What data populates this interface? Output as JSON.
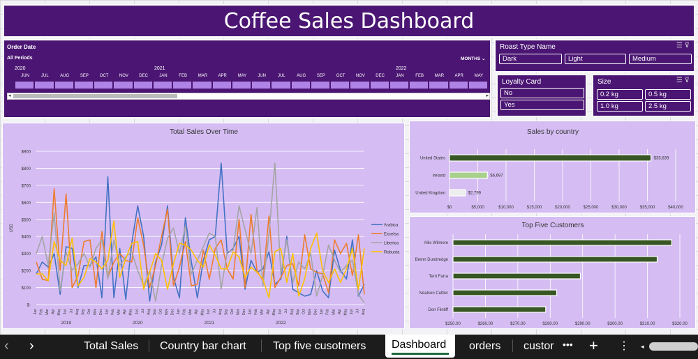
{
  "dashboard_title": "Coffee Sales Dashboard",
  "timeline": {
    "field": "Order Date",
    "period": "All Periods",
    "unit": "MONTHS",
    "years": [
      "2020",
      "2021",
      "2022"
    ],
    "months": [
      "JUN",
      "JUL",
      "AUG",
      "SEP",
      "OCT",
      "NOV",
      "DEC",
      "JAN",
      "FEB",
      "MAR",
      "APR",
      "MAY",
      "JUN",
      "JUL",
      "AUG",
      "SEP",
      "OCT",
      "NOV",
      "DEC",
      "JAN",
      "FEB",
      "MAR",
      "APR",
      "MAY"
    ]
  },
  "slicers": {
    "roast": {
      "title": "Roast Type Name",
      "items": [
        "Dark",
        "Light",
        "Medium"
      ]
    },
    "loyalty": {
      "title": "Loyalty Card",
      "items": [
        "No",
        "Yes"
      ]
    },
    "size": {
      "title": "Size",
      "items": [
        "0.2 kg",
        "0.5 kg",
        "1.0 kg",
        "2.5 kg"
      ]
    }
  },
  "icons": [
    "multi-select-icon",
    "clear-filter-icon",
    "scroll-left-icon",
    "scroll-right-icon",
    "more-icon",
    "add-sheet-icon",
    "vertical-menu-icon"
  ],
  "chart_data": [
    {
      "type": "line",
      "title": "Total Sales Over Time",
      "ylabel": "USD",
      "ylim": [
        0,
        900
      ],
      "yticks": [
        "$-",
        "$100",
        "$200",
        "$300",
        "$400",
        "$500",
        "$600",
        "$700",
        "$800",
        "$900"
      ],
      "x_months": [
        "Jan",
        "Feb",
        "Mar",
        "Apr",
        "May",
        "Jun",
        "Jul",
        "Aug",
        "Sep",
        "Oct",
        "Nov",
        "Dec",
        "Jan",
        "Feb",
        "Mar",
        "Apr",
        "May",
        "Jun",
        "Jul",
        "Aug",
        "Sep",
        "Oct",
        "Nov",
        "Dec",
        "Jan",
        "Feb",
        "Mar",
        "Apr",
        "May",
        "Jun",
        "Jul",
        "Aug",
        "Sep",
        "Oct",
        "Nov",
        "Dec",
        "Jan",
        "Feb",
        "Mar",
        "Apr",
        "May",
        "Jun",
        "Jul",
        "Aug",
        "Sep",
        "Oct",
        "Nov",
        "Dec",
        "Jan",
        "Feb",
        "Mar",
        "Apr",
        "May",
        "Jun",
        "Jul",
        "Aug"
      ],
      "x_years": [
        {
          "label": "2019",
          "index": 5
        },
        {
          "label": "2020",
          "index": 17
        },
        {
          "label": "2021",
          "index": 29
        },
        {
          "label": "2022",
          "index": 41
        }
      ],
      "series": [
        {
          "name": "Arabica",
          "color": "#4472c4",
          "values": [
            180,
            250,
            220,
            300,
            60,
            340,
            330,
            100,
            230,
            230,
            280,
            40,
            750,
            40,
            330,
            30,
            360,
            580,
            400,
            20,
            250,
            350,
            580,
            160,
            40,
            510,
            250,
            40,
            260,
            380,
            400,
            830,
            300,
            330,
            400,
            90,
            260,
            190,
            210,
            310,
            120,
            150,
            400,
            90,
            70,
            50,
            60,
            200,
            80,
            40,
            320,
            200,
            150,
            380,
            50,
            120
          ]
        },
        {
          "name": "Excelsa",
          "color": "#ed7d31",
          "values": [
            250,
            150,
            140,
            680,
            200,
            650,
            100,
            170,
            370,
            380,
            100,
            430,
            160,
            250,
            300,
            260,
            250,
            510,
            350,
            100,
            230,
            400,
            560,
            110,
            220,
            370,
            110,
            120,
            320,
            150,
            330,
            380,
            210,
            150,
            500,
            100,
            530,
            200,
            140,
            520,
            100,
            160,
            230,
            240,
            110,
            410,
            210,
            190,
            180,
            70,
            380,
            300,
            360,
            170,
            410,
            60
          ]
        },
        {
          "name": "Liberica",
          "color": "#a5a5a5",
          "values": [
            300,
            400,
            230,
            540,
            80,
            310,
            200,
            240,
            300,
            220,
            330,
            380,
            150,
            380,
            230,
            280,
            310,
            200,
            110,
            200,
            20,
            230,
            390,
            450,
            300,
            460,
            180,
            260,
            340,
            420,
            400,
            90,
            310,
            320,
            580,
            440,
            300,
            570,
            110,
            410,
            830,
            180,
            380,
            130,
            250,
            210,
            300,
            50,
            170,
            350,
            260,
            190,
            230,
            260,
            60,
            10
          ]
        },
        {
          "name": "Robusta",
          "color": "#ffc000",
          "values": [
            180,
            180,
            140,
            370,
            260,
            230,
            390,
            110,
            160,
            270,
            250,
            210,
            260,
            490,
            160,
            270,
            360,
            370,
            90,
            190,
            300,
            260,
            90,
            240,
            360,
            350,
            320,
            260,
            220,
            350,
            290,
            210,
            210,
            310,
            280,
            160,
            220,
            190,
            150,
            40,
            310,
            330,
            130,
            300,
            50,
            150,
            330,
            420,
            200,
            130,
            210,
            130,
            210,
            330,
            90,
            330
          ]
        }
      ]
    },
    {
      "type": "bar",
      "title": "Sales by country",
      "categories": [
        "United States",
        "Ireland",
        "United Kingdom"
      ],
      "values": [
        35639,
        6697,
        2799
      ],
      "labels": [
        "$35,639",
        "$6,697",
        "$2,799"
      ],
      "colors": [
        "#375623",
        "#a9d18e",
        "#ededed"
      ],
      "xlim": [
        0,
        40000
      ],
      "xticks": [
        "$0",
        "$5,000",
        "$10,000",
        "$15,000",
        "$20,000",
        "$25,000",
        "$30,000",
        "$35,000",
        "$40,000"
      ]
    },
    {
      "type": "bar",
      "title": "Top Five Customers",
      "categories": [
        "Allis Wilmore",
        "Brenn Dundredge",
        "Terri Farra",
        "Nealson Cuttler",
        "Don Flintiff"
      ],
      "values": [
        317.5,
        313.0,
        289.3,
        282.0,
        278.6
      ],
      "color": "#375623",
      "xlim": [
        250,
        320
      ],
      "xticks": [
        "$250.00",
        "$260.00",
        "$270.00",
        "$280.00",
        "$290.00",
        "$300.00",
        "$310.00",
        "$320.00"
      ]
    }
  ],
  "tabs": {
    "items": [
      "Total Sales",
      "Country bar chart",
      "Top five cusotmers",
      "orders",
      "custor"
    ],
    "active": "Dashboard",
    "more": "•••",
    "add": "+",
    "menu": "⋮",
    "prev": "‹",
    "next": "›"
  }
}
